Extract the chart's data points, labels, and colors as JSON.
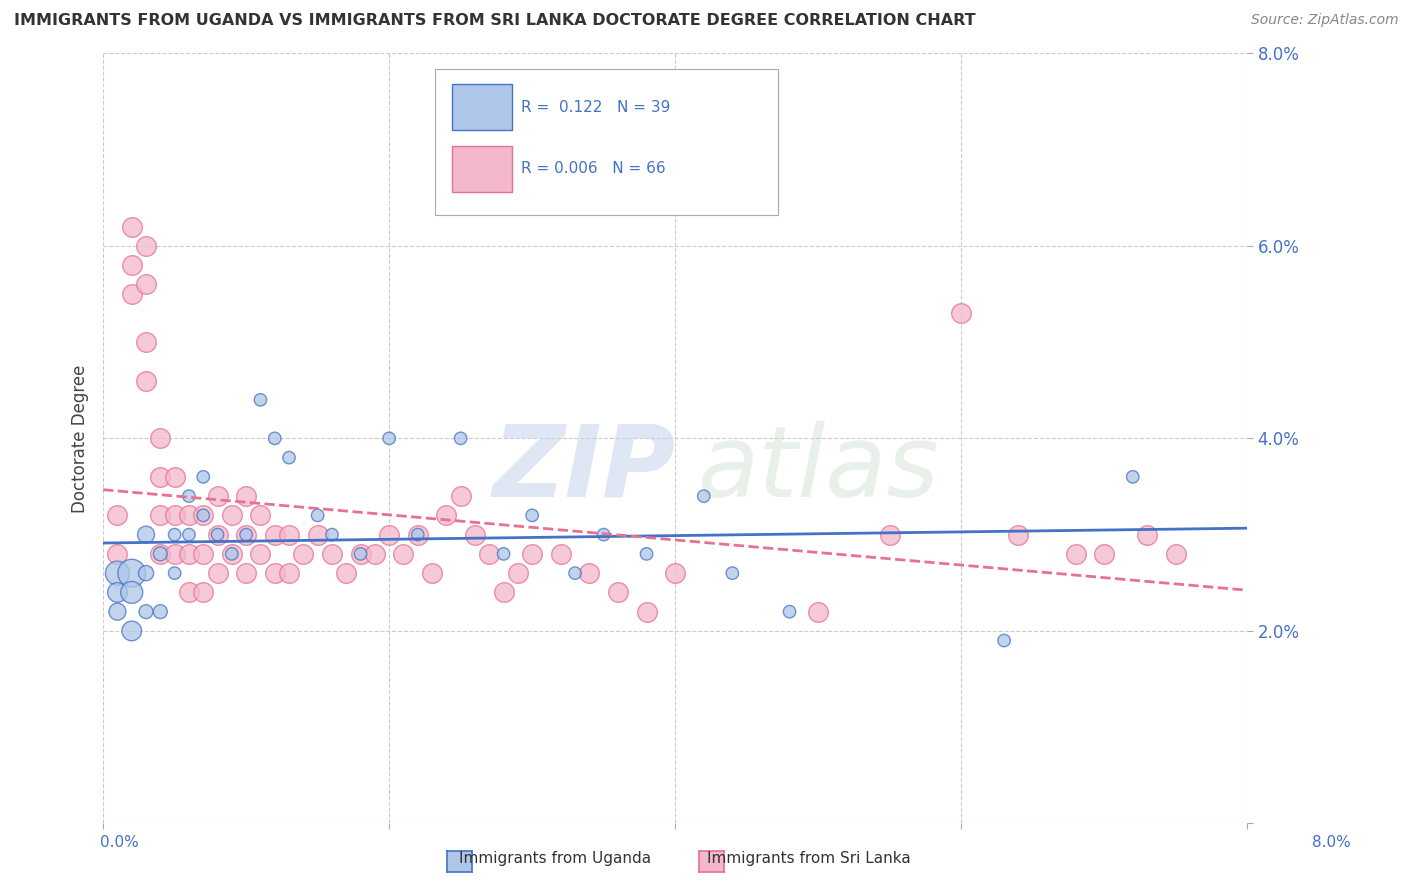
{
  "title": "IMMIGRANTS FROM UGANDA VS IMMIGRANTS FROM SRI LANKA DOCTORATE DEGREE CORRELATION CHART",
  "source": "Source: ZipAtlas.com",
  "ylabel": "Doctorate Degree",
  "xlim": [
    0.0,
    0.08
  ],
  "ylim": [
    0.0,
    0.08
  ],
  "yticks": [
    0.0,
    0.02,
    0.04,
    0.06,
    0.08
  ],
  "ytick_labels": [
    "",
    "2.0%",
    "4.0%",
    "6.0%",
    "8.0%"
  ],
  "color_uganda": "#aec6e8",
  "color_sri_lanka": "#f4b8cc",
  "color_line_uganda": "#4472c4",
  "color_line_sri_lanka": "#e87090",
  "label_uganda": "Immigrants from Uganda",
  "label_sri_lanka": "Immigrants from Sri Lanka",
  "legend_text1": "R =  0.122   N = 39",
  "legend_text2": "R = 0.006   N = 66",
  "uganda_x": [
    0.001,
    0.001,
    0.001,
    0.002,
    0.002,
    0.002,
    0.003,
    0.003,
    0.003,
    0.004,
    0.004,
    0.005,
    0.005,
    0.006,
    0.006,
    0.007,
    0.007,
    0.008,
    0.009,
    0.01,
    0.011,
    0.012,
    0.013,
    0.015,
    0.016,
    0.018,
    0.02,
    0.022,
    0.025,
    0.028,
    0.03,
    0.033,
    0.035,
    0.038,
    0.042,
    0.044,
    0.048,
    0.063,
    0.072
  ],
  "uganda_y": [
    0.026,
    0.024,
    0.022,
    0.026,
    0.024,
    0.02,
    0.03,
    0.026,
    0.022,
    0.028,
    0.022,
    0.03,
    0.026,
    0.034,
    0.03,
    0.036,
    0.032,
    0.03,
    0.028,
    0.03,
    0.044,
    0.04,
    0.038,
    0.032,
    0.03,
    0.028,
    0.04,
    0.03,
    0.04,
    0.028,
    0.032,
    0.026,
    0.03,
    0.028,
    0.034,
    0.026,
    0.022,
    0.019,
    0.036
  ],
  "uganda_size": [
    300,
    200,
    150,
    400,
    250,
    200,
    150,
    120,
    100,
    100,
    100,
    80,
    80,
    80,
    80,
    80,
    80,
    80,
    80,
    80,
    80,
    80,
    80,
    80,
    80,
    80,
    80,
    80,
    80,
    80,
    80,
    80,
    80,
    80,
    80,
    80,
    80,
    80,
    80
  ],
  "srilanka_x": [
    0.001,
    0.001,
    0.002,
    0.002,
    0.002,
    0.003,
    0.003,
    0.003,
    0.003,
    0.004,
    0.004,
    0.004,
    0.004,
    0.005,
    0.005,
    0.005,
    0.006,
    0.006,
    0.006,
    0.007,
    0.007,
    0.007,
    0.008,
    0.008,
    0.008,
    0.009,
    0.009,
    0.01,
    0.01,
    0.01,
    0.011,
    0.011,
    0.012,
    0.012,
    0.013,
    0.013,
    0.014,
    0.015,
    0.016,
    0.017,
    0.018,
    0.019,
    0.02,
    0.021,
    0.022,
    0.023,
    0.024,
    0.025,
    0.026,
    0.027,
    0.028,
    0.029,
    0.03,
    0.032,
    0.034,
    0.036,
    0.038,
    0.04,
    0.05,
    0.055,
    0.06,
    0.064,
    0.068,
    0.07,
    0.073,
    0.075
  ],
  "srilanka_y": [
    0.032,
    0.028,
    0.062,
    0.058,
    0.055,
    0.06,
    0.056,
    0.05,
    0.046,
    0.04,
    0.036,
    0.032,
    0.028,
    0.036,
    0.032,
    0.028,
    0.032,
    0.028,
    0.024,
    0.032,
    0.028,
    0.024,
    0.034,
    0.03,
    0.026,
    0.032,
    0.028,
    0.034,
    0.03,
    0.026,
    0.032,
    0.028,
    0.03,
    0.026,
    0.03,
    0.026,
    0.028,
    0.03,
    0.028,
    0.026,
    0.028,
    0.028,
    0.03,
    0.028,
    0.03,
    0.026,
    0.032,
    0.034,
    0.03,
    0.028,
    0.024,
    0.026,
    0.028,
    0.028,
    0.026,
    0.024,
    0.022,
    0.026,
    0.022,
    0.03,
    0.053,
    0.03,
    0.028,
    0.028,
    0.03,
    0.028
  ]
}
